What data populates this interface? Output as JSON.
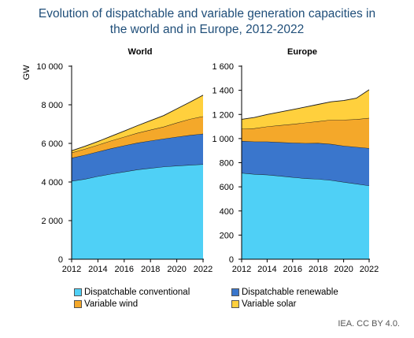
{
  "title_line1": "Evolution of dispatchable and variable generation capacities in",
  "title_line2": "the world and in Europe, 2012-2022",
  "credit": "IEA. CC BY 4.0.",
  "chart_data": [
    {
      "type": "area",
      "stacked": true,
      "title": "World",
      "ylabel": "GW",
      "x": [
        2012,
        2013,
        2014,
        2015,
        2016,
        2017,
        2018,
        2019,
        2020,
        2021,
        2022
      ],
      "ylim": [
        0,
        10000
      ],
      "yticks": [
        "0",
        "2 000",
        "4 000",
        "6 000",
        "8 000",
        "10 000"
      ],
      "ytick_values": [
        0,
        2000,
        4000,
        6000,
        8000,
        10000
      ],
      "xticks": [
        "2012",
        "2014",
        "2016",
        "2018",
        "2020",
        "2022"
      ],
      "xtick_values": [
        2012,
        2014,
        2016,
        2018,
        2020,
        2022
      ],
      "series": [
        {
          "name": "Dispatchable conventional",
          "color": "#4fd0f6",
          "values": [
            4050,
            4150,
            4300,
            4420,
            4530,
            4640,
            4720,
            4790,
            4840,
            4880,
            4920
          ]
        },
        {
          "name": "Dispatchable renewable",
          "color": "#3a76cc",
          "values": [
            1200,
            1250,
            1270,
            1320,
            1360,
            1390,
            1420,
            1450,
            1500,
            1550,
            1580
          ]
        },
        {
          "name": "Variable wind",
          "color": "#f4a82a",
          "values": [
            270,
            310,
            350,
            400,
            450,
            510,
            560,
            620,
            730,
            830,
            900
          ]
        },
        {
          "name": "Variable solar",
          "color": "#ffd03d",
          "values": [
            100,
            140,
            180,
            230,
            300,
            380,
            480,
            580,
            720,
            880,
            1100
          ]
        }
      ]
    },
    {
      "type": "area",
      "stacked": true,
      "title": "Europe",
      "x": [
        2012,
        2013,
        2014,
        2015,
        2016,
        2017,
        2018,
        2019,
        2020,
        2021,
        2022
      ],
      "ylim": [
        0,
        1600
      ],
      "yticks": [
        "0",
        "200",
        "400",
        "600",
        "800",
        "1 000",
        "1 200",
        "1 400",
        "1 600"
      ],
      "ytick_values": [
        0,
        200,
        400,
        600,
        800,
        1000,
        1200,
        1400,
        1600
      ],
      "xticks": [
        "2012",
        "2014",
        "2016",
        "2018",
        "2020",
        "2022"
      ],
      "xtick_values": [
        2012,
        2014,
        2016,
        2018,
        2020,
        2022
      ],
      "series": [
        {
          "name": "Dispatchable conventional",
          "color": "#4fd0f6",
          "values": [
            715,
            705,
            700,
            690,
            680,
            670,
            665,
            655,
            640,
            625,
            610
          ]
        },
        {
          "name": "Dispatchable renewable",
          "color": "#3a76cc",
          "values": [
            265,
            270,
            275,
            280,
            285,
            292,
            298,
            300,
            300,
            305,
            310
          ]
        },
        {
          "name": "Variable wind",
          "color": "#f4a82a",
          "values": [
            100,
            110,
            125,
            140,
            155,
            170,
            180,
            200,
            215,
            230,
            250
          ]
        },
        {
          "name": "Variable solar",
          "color": "#ffd03d",
          "values": [
            80,
            90,
            100,
            110,
            120,
            130,
            140,
            150,
            160,
            175,
            235
          ]
        }
      ]
    }
  ],
  "legend": [
    {
      "label": "Dispatchable conventional",
      "color": "#4fd0f6"
    },
    {
      "label": "Dispatchable renewable",
      "color": "#3a76cc"
    },
    {
      "label": "Variable wind",
      "color": "#f4a82a"
    },
    {
      "label": "Variable solar",
      "color": "#ffd03d"
    }
  ]
}
